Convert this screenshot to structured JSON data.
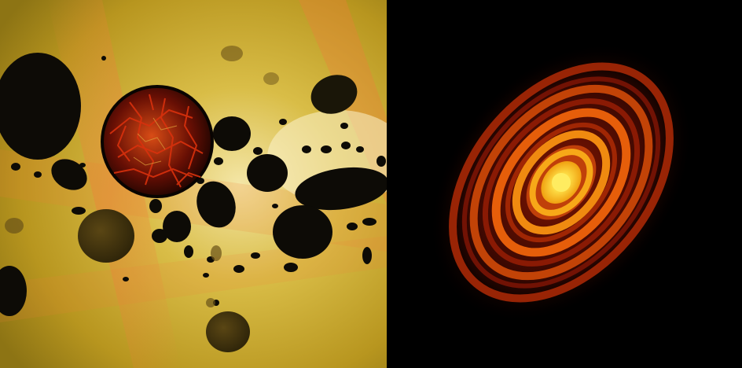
{
  "panels": [
    {
      "subject": "protoplanetary-debris-illustration"
    },
    {
      "subject": "protoplanetary-disk-rings-image"
    }
  ],
  "colors": {
    "left_background": "#c7a52a",
    "left_glow": "#f4e6a6",
    "left_streak": "#ef7f3a",
    "rock": "#0d0b06",
    "lava": "#ff3a10",
    "disk_core": "#ffe24a",
    "disk_mid": "#f08a10",
    "disk_outer": "#9a1a04",
    "space": "#000000"
  }
}
